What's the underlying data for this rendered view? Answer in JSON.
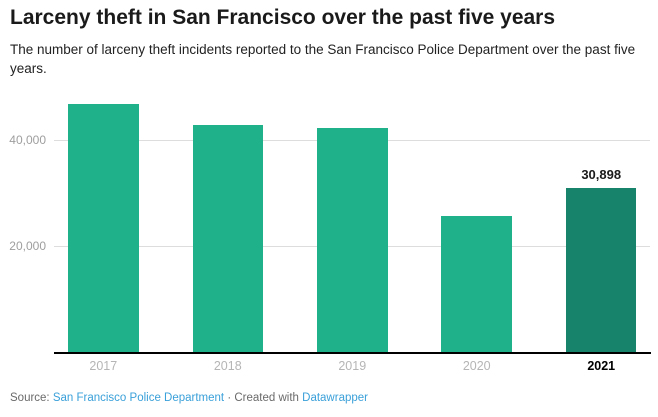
{
  "chart_data": {
    "type": "bar",
    "title": "Larceny theft in San Francisco over the past five years",
    "subtitle": "The number of larceny theft incidents reported to the San Francisco Police Department over the past five years.",
    "categories": [
      "2017",
      "2018",
      "2019",
      "2020",
      "2021"
    ],
    "values": [
      46700,
      42800,
      42100,
      25700,
      30898
    ],
    "value_labels": [
      "",
      "",
      "",
      "",
      "30,898"
    ],
    "highlighted_category": "2021",
    "xlabel": "",
    "ylabel": "",
    "ylim": [
      0,
      48000
    ],
    "yticks": [
      {
        "value": 20000,
        "label": "20,000"
      },
      {
        "value": 40000,
        "label": "40,000"
      }
    ],
    "grid": "horizontal",
    "legend": "none"
  },
  "footer": {
    "source_prefix": "Source: ",
    "source_link_label": "San Francisco Police Department",
    "separator": " · ",
    "created_with_prefix": "Created with ",
    "tool_link_label": "Datawrapper"
  },
  "colors": {
    "bar": "#1fb18a",
    "bar_highlight": "#17836b",
    "link": "#3aa0d9",
    "gridline": "#dddddd",
    "axis_line": "#000000",
    "y_tick_label": "#9e9e9e",
    "x_tick_label": "#b5b5b5",
    "x_tick_label_highlight": "#000000",
    "title_text": "#1a1a1a",
    "body_text": "#222222",
    "footer_text": "#6a6a6a"
  }
}
